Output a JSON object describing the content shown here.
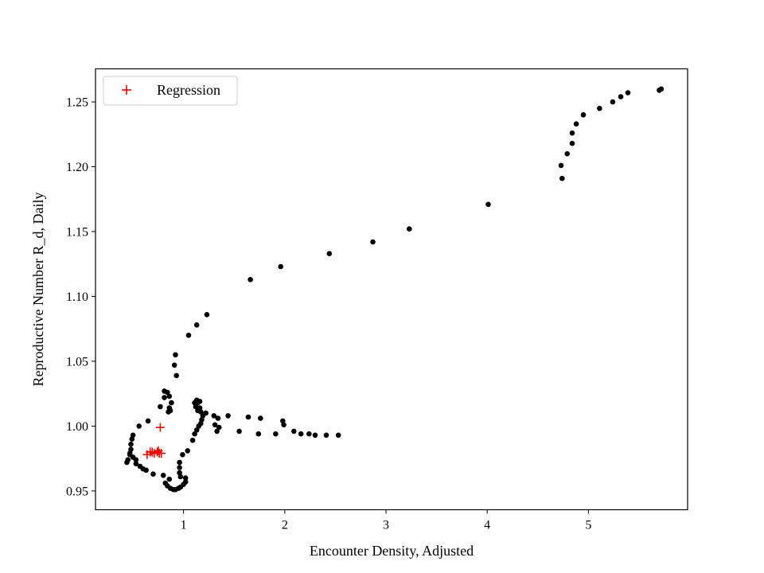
{
  "chart_data": {
    "type": "scatter",
    "title": "",
    "xlabel": "Encounter Density, Adjusted",
    "ylabel": "Reproductive Number R_d, Daily",
    "xlim": [
      0.13,
      5.98
    ],
    "ylim": [
      0.9355,
      1.2755
    ],
    "xticks": [
      1,
      2,
      3,
      4,
      5
    ],
    "yticks": [
      0.95,
      1.0,
      1.05,
      1.1,
      1.15,
      1.2,
      1.25
    ],
    "grid": false,
    "legend": {
      "placement": "top-left",
      "entries": [
        {
          "label": "Regression",
          "marker": "+",
          "color": "#ff0000"
        }
      ]
    },
    "series": [
      {
        "marker": "circle",
        "color": "#000000",
        "points": [
          [
            5.72,
            1.26
          ],
          [
            5.7,
            1.259
          ],
          [
            5.39,
            1.257
          ],
          [
            5.32,
            1.254
          ],
          [
            5.24,
            1.25
          ],
          [
            5.11,
            1.245
          ],
          [
            4.95,
            1.24
          ],
          [
            4.88,
            1.233
          ],
          [
            4.84,
            1.226
          ],
          [
            4.84,
            1.218
          ],
          [
            4.79,
            1.21
          ],
          [
            4.73,
            1.201
          ],
          [
            4.74,
            1.191
          ],
          [
            4.01,
            1.171
          ],
          [
            3.23,
            1.152
          ],
          [
            2.87,
            1.142
          ],
          [
            2.44,
            1.133
          ],
          [
            1.96,
            1.123
          ],
          [
            1.66,
            1.113
          ],
          [
            1.23,
            1.086
          ],
          [
            1.13,
            1.078
          ],
          [
            1.05,
            1.07
          ],
          [
            0.92,
            1.055
          ],
          [
            0.91,
            1.047
          ],
          [
            0.93,
            1.039
          ],
          [
            0.81,
            1.027
          ],
          [
            0.84,
            1.026
          ],
          [
            0.86,
            1.023
          ],
          [
            0.81,
            1.022
          ],
          [
            0.88,
            1.018
          ],
          [
            0.77,
            1.015
          ],
          [
            0.86,
            1.014
          ],
          [
            0.85,
            1.011
          ],
          [
            0.87,
            1.012
          ],
          [
            1.11,
            1.018
          ],
          [
            1.13,
            1.02
          ],
          [
            1.14,
            1.018
          ],
          [
            1.16,
            1.019
          ],
          [
            1.12,
            1.015
          ],
          [
            1.16,
            1.014
          ],
          [
            1.14,
            1.012
          ],
          [
            1.17,
            1.011
          ],
          [
            1.22,
            1.01
          ],
          [
            1.19,
            1.008
          ],
          [
            1.3,
            1.008
          ],
          [
            1.34,
            1.006
          ],
          [
            1.44,
            1.008
          ],
          [
            1.64,
            1.007
          ],
          [
            1.76,
            1.006
          ],
          [
            1.31,
            1.001
          ],
          [
            1.18,
            1.005
          ],
          [
            1.17,
            1.002
          ],
          [
            1.15,
            1.0
          ],
          [
            1.35,
            0.999
          ],
          [
            1.33,
            0.996
          ],
          [
            1.55,
            0.996
          ],
          [
            1.74,
            0.994
          ],
          [
            1.91,
            0.994
          ],
          [
            1.98,
            1.004
          ],
          [
            1.99,
            1.001
          ],
          [
            2.09,
            0.996
          ],
          [
            2.16,
            0.994
          ],
          [
            2.24,
            0.994
          ],
          [
            2.3,
            0.993
          ],
          [
            2.41,
            0.993
          ],
          [
            2.53,
            0.993
          ],
          [
            1.13,
            0.997
          ],
          [
            1.11,
            0.994
          ],
          [
            1.09,
            0.989
          ],
          [
            1.04,
            0.981
          ],
          [
            0.99,
            0.978
          ],
          [
            0.96,
            0.972
          ],
          [
            0.96,
            0.968
          ],
          [
            0.96,
            0.964
          ],
          [
            0.97,
            0.961
          ],
          [
            1.02,
            0.96
          ],
          [
            1.02,
            0.957
          ],
          [
            1.0,
            0.955
          ],
          [
            0.97,
            0.953
          ],
          [
            0.95,
            0.952
          ],
          [
            0.92,
            0.951
          ],
          [
            0.9,
            0.951
          ],
          [
            0.87,
            0.952
          ],
          [
            0.84,
            0.954
          ],
          [
            0.82,
            0.956
          ],
          [
            0.86,
            0.959
          ],
          [
            0.8,
            0.962
          ],
          [
            0.7,
            0.963
          ],
          [
            0.63,
            0.966
          ],
          [
            0.6,
            0.967
          ],
          [
            0.57,
            0.969
          ],
          [
            0.53,
            0.971
          ],
          [
            0.53,
            0.974
          ],
          [
            0.5,
            0.976
          ],
          [
            0.47,
            0.979
          ],
          [
            0.48,
            0.982
          ],
          [
            0.48,
            0.986
          ],
          [
            0.49,
            0.99
          ],
          [
            0.5,
            0.993
          ],
          [
            0.44,
            0.972
          ],
          [
            0.45,
            0.974
          ],
          [
            0.47,
            0.978
          ],
          [
            0.56,
            1.0
          ],
          [
            0.65,
            1.004
          ]
        ]
      },
      {
        "name": "Regression",
        "marker": "+",
        "color": "#ff0000",
        "points": [
          [
            0.77,
            0.999
          ],
          [
            0.64,
            0.978
          ],
          [
            0.67,
            0.98
          ],
          [
            0.69,
            0.98
          ],
          [
            0.71,
            0.979
          ],
          [
            0.74,
            0.98
          ],
          [
            0.75,
            0.981
          ],
          [
            0.76,
            0.979
          ],
          [
            0.78,
            0.979
          ]
        ]
      }
    ]
  }
}
